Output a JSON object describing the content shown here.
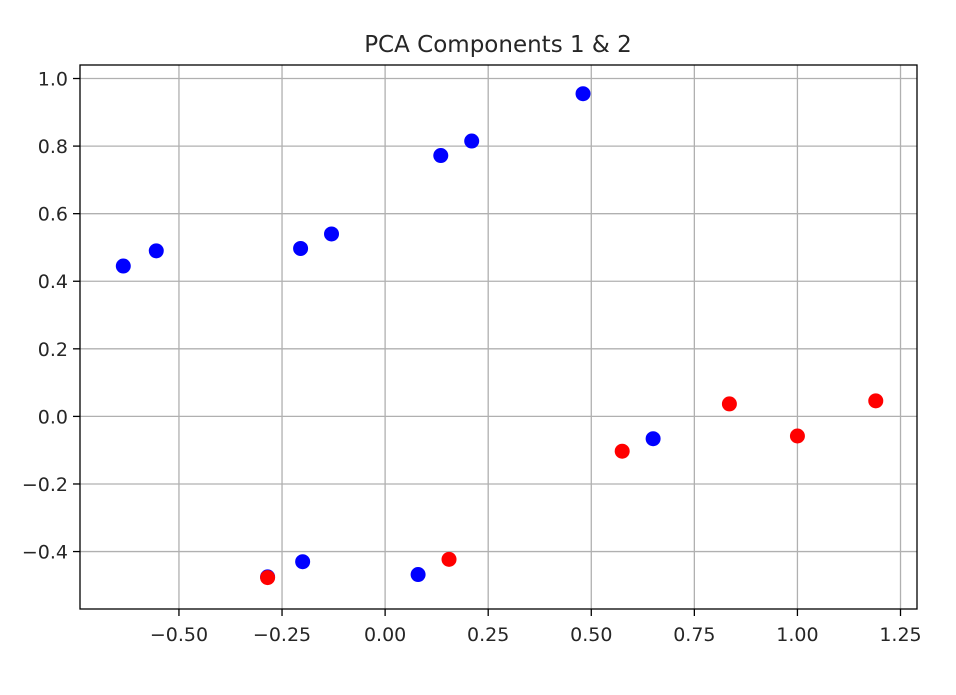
{
  "chart_data": {
    "type": "scatter",
    "title": "PCA Components 1 & 2",
    "xlabel": "",
    "ylabel": "",
    "xlim": [
      -0.74,
      1.29
    ],
    "ylim": [
      -0.57,
      1.04
    ],
    "grid": true,
    "x_ticks": [
      -0.5,
      -0.25,
      0.0,
      0.25,
      0.5,
      0.75,
      1.0,
      1.25
    ],
    "x_tick_labels": [
      "−0.50",
      "−0.25",
      "0.00",
      "0.25",
      "0.50",
      "0.75",
      "1.00",
      "1.25"
    ],
    "y_ticks": [
      -0.4,
      -0.2,
      0.0,
      0.2,
      0.4,
      0.6,
      0.8,
      1.0
    ],
    "y_tick_labels": [
      "−0.4",
      "−0.2",
      "0.0",
      "0.2",
      "0.4",
      "0.6",
      "0.8",
      "1.0"
    ],
    "series": [
      {
        "color": "#0000ff",
        "points": [
          {
            "x": -0.635,
            "y": 0.445
          },
          {
            "x": -0.555,
            "y": 0.49
          },
          {
            "x": -0.205,
            "y": 0.497
          },
          {
            "x": -0.13,
            "y": 0.54
          },
          {
            "x": 0.135,
            "y": 0.772
          },
          {
            "x": 0.21,
            "y": 0.815
          },
          {
            "x": 0.48,
            "y": 0.955
          },
          {
            "x": 0.65,
            "y": -0.066
          },
          {
            "x": -0.285,
            "y": -0.475
          },
          {
            "x": -0.2,
            "y": -0.43
          },
          {
            "x": 0.08,
            "y": -0.468
          }
        ]
      },
      {
        "color": "#ff0000",
        "points": [
          {
            "x": -0.285,
            "y": -0.477
          },
          {
            "x": 0.155,
            "y": -0.423
          },
          {
            "x": 0.575,
            "y": -0.103
          },
          {
            "x": 0.835,
            "y": 0.037
          },
          {
            "x": 1.0,
            "y": -0.058
          },
          {
            "x": 1.19,
            "y": 0.046
          }
        ]
      }
    ]
  }
}
